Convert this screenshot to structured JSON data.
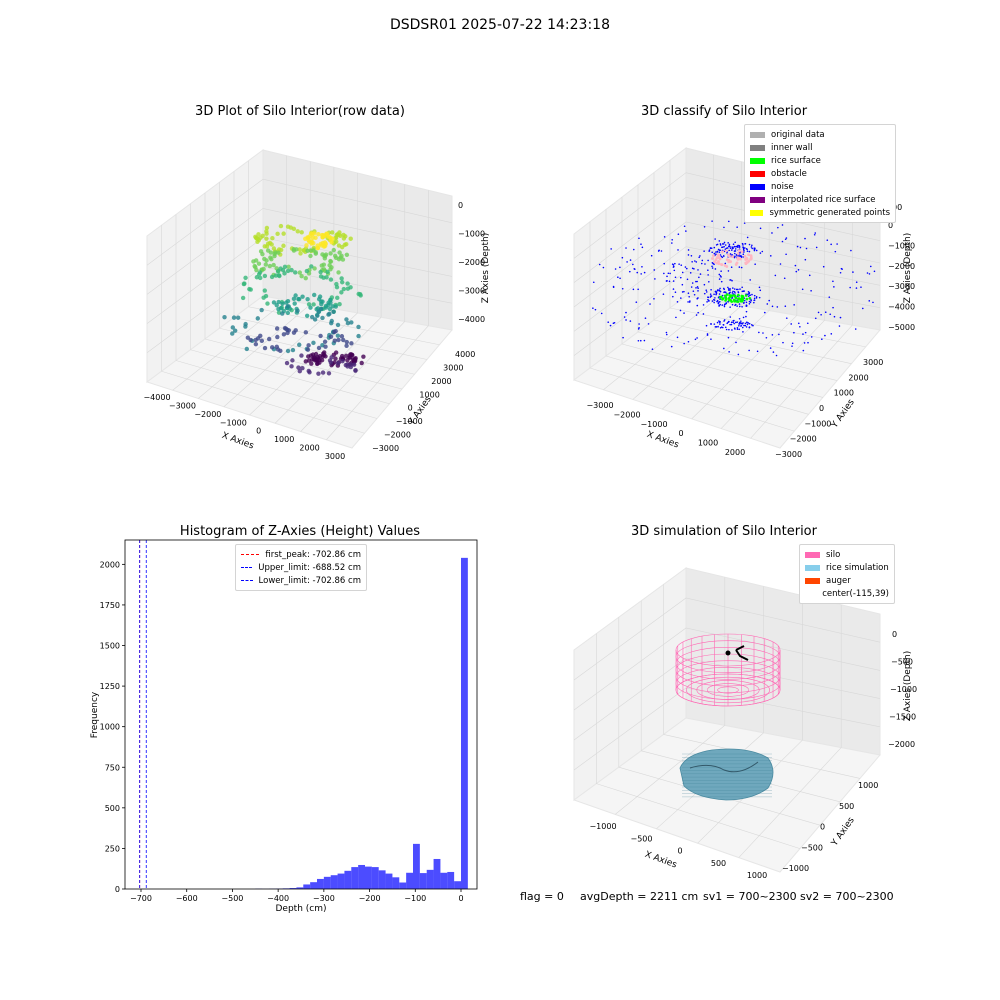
{
  "suptitle": "DSDSR01 2025-07-22 14:23:18",
  "chart_data": [
    {
      "id": "raw",
      "type": "scatter",
      "title": "3D Plot of Silo Interior(row data)",
      "xlabel": "X Axies",
      "ylabel": "Y Axies",
      "zlabel": "Z Axies (Depth)",
      "x_ticks": [
        "−4000",
        "−3000",
        "−2000",
        "−1000",
        "0",
        "1000",
        "2000",
        "3000"
      ],
      "y_ticks": [
        "−3000",
        "−2000",
        "−1000",
        "0",
        "1000",
        "2000",
        "3000",
        "4000"
      ],
      "z_ticks": [
        "−4000",
        "−3000",
        "−2000",
        "−1000",
        "0"
      ]
    },
    {
      "id": "classify",
      "type": "scatter",
      "title": "3D classify of Silo Interior",
      "xlabel": "X Axies",
      "ylabel": "Y Axies",
      "zlabel": "Z Axies (Depth)",
      "x_ticks": [
        "−3000",
        "−2000",
        "−1000",
        "0",
        "1000",
        "2000"
      ],
      "y_ticks": [
        "−3000",
        "−2000",
        "−1000",
        "0",
        "1000",
        "2000",
        "3000"
      ],
      "z_ticks": [
        "−5000",
        "−4000",
        "−3000",
        "−2000",
        "−1000",
        "0"
      ],
      "z_tick_partial": "00",
      "legend": [
        {
          "label": "original data",
          "color": "#b0b0b0"
        },
        {
          "label": "inner wall",
          "color": "#808080"
        },
        {
          "label": "rice surface",
          "color": "#00ff00"
        },
        {
          "label": "obstacle",
          "color": "#ff0000"
        },
        {
          "label": "noise",
          "color": "#0000ff"
        },
        {
          "label": "interpolated rice surface",
          "color": "#800080"
        },
        {
          "label": "symmetric generated points",
          "color": "#ffff00"
        }
      ]
    },
    {
      "id": "histogram",
      "type": "bar",
      "title": "Histogram of Z-Axies (Height) Values",
      "xlabel": "Depth (cm)",
      "ylabel": "Frequency",
      "xlim": [
        -735,
        35
      ],
      "ylim": [
        0,
        2150
      ],
      "x_ticks": [
        -700,
        -600,
        -500,
        -400,
        -300,
        -200,
        -100,
        0
      ],
      "y_ticks": [
        0,
        250,
        500,
        750,
        1000,
        1250,
        1500,
        1750,
        2000
      ],
      "bar_color": "#0000ff",
      "bins": [
        {
          "x0": -450,
          "x1": -435,
          "v": 2
        },
        {
          "x0": -435,
          "x1": -420,
          "v": 1
        },
        {
          "x0": -420,
          "x1": -405,
          "v": 2
        },
        {
          "x0": -405,
          "x1": -390,
          "v": 3
        },
        {
          "x0": -390,
          "x1": -375,
          "v": 4
        },
        {
          "x0": -375,
          "x1": -360,
          "v": 6
        },
        {
          "x0": -360,
          "x1": -345,
          "v": 10
        },
        {
          "x0": -345,
          "x1": -330,
          "v": 28
        },
        {
          "x0": -330,
          "x1": -315,
          "v": 42
        },
        {
          "x0": -315,
          "x1": -300,
          "v": 62
        },
        {
          "x0": -300,
          "x1": -285,
          "v": 75
        },
        {
          "x0": -285,
          "x1": -270,
          "v": 85
        },
        {
          "x0": -270,
          "x1": -255,
          "v": 95
        },
        {
          "x0": -255,
          "x1": -240,
          "v": 112
        },
        {
          "x0": -240,
          "x1": -225,
          "v": 135
        },
        {
          "x0": -225,
          "x1": -210,
          "v": 148
        },
        {
          "x0": -210,
          "x1": -195,
          "v": 138
        },
        {
          "x0": -195,
          "x1": -180,
          "v": 135
        },
        {
          "x0": -180,
          "x1": -165,
          "v": 115
        },
        {
          "x0": -165,
          "x1": -150,
          "v": 95
        },
        {
          "x0": -150,
          "x1": -135,
          "v": 72
        },
        {
          "x0": -135,
          "x1": -120,
          "v": 40
        },
        {
          "x0": -120,
          "x1": -105,
          "v": 100
        },
        {
          "x0": -105,
          "x1": -90,
          "v": 278
        },
        {
          "x0": -90,
          "x1": -75,
          "v": 98
        },
        {
          "x0": -75,
          "x1": -60,
          "v": 118
        },
        {
          "x0": -60,
          "x1": -45,
          "v": 185
        },
        {
          "x0": -45,
          "x1": -30,
          "v": 100
        },
        {
          "x0": -30,
          "x1": -15,
          "v": 105
        },
        {
          "x0": -15,
          "x1": 0,
          "v": 48
        },
        {
          "x0": 0,
          "x1": 15,
          "v": 2040
        }
      ],
      "vlines": [
        {
          "x": -702.86,
          "color": "#ff0000",
          "label": "first_peak: -702.86 cm"
        },
        {
          "x": -688.52,
          "color": "#0000ff",
          "label": "Upper_limit: -688.52 cm"
        },
        {
          "x": -702.86,
          "color": "#0000ff",
          "label": "Lower_limit: -702.86 cm"
        }
      ]
    },
    {
      "id": "simulation",
      "type": "scatter",
      "title": "3D simulation of Silo Interior",
      "xlabel": "X Axies",
      "ylabel": "Y Axies",
      "zlabel": "Z Axies (Depth)",
      "x_ticks": [
        "−1000",
        "−500",
        "0",
        "500",
        "1000"
      ],
      "y_ticks": [
        "−1000",
        "−500",
        "0",
        "500",
        "1000"
      ],
      "z_ticks": [
        "−2000",
        "−1500",
        "−1000",
        "−500",
        "0"
      ],
      "legend": [
        {
          "label": "silo",
          "color": "#ff69b4"
        },
        {
          "label": "rice simulation",
          "color": "#87ceeb"
        },
        {
          "label": "auger",
          "color": "#ff4500"
        },
        {
          "label": "center(-115,39)",
          "color": ""
        }
      ]
    }
  ],
  "footer": {
    "flag": "flag = 0",
    "avg": "avgDepth = 2211 cm",
    "sv1": "sv1 = 700~2300",
    "sv2": "sv2 = 700~2300"
  }
}
